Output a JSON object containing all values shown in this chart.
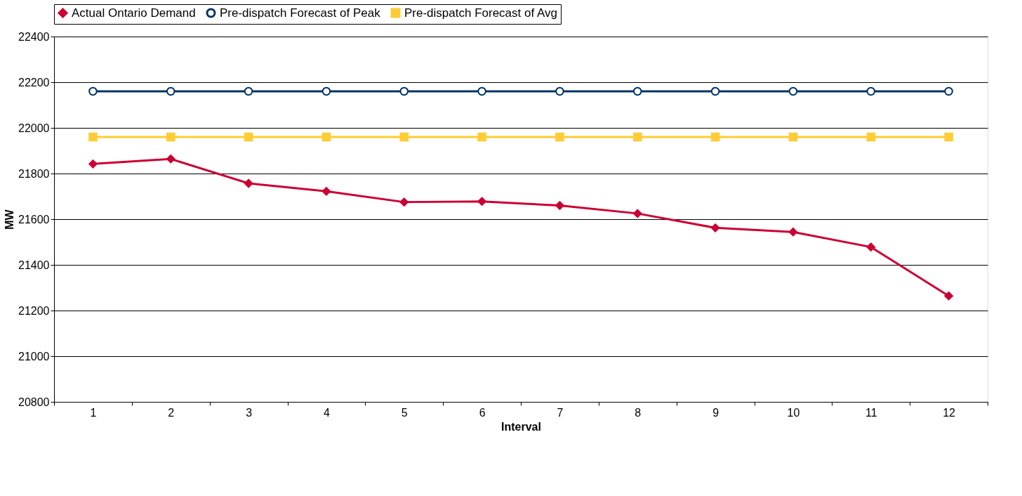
{
  "chart_data": {
    "type": "line",
    "xlabel": "Interval",
    "ylabel": "MW",
    "categories": [
      "1",
      "2",
      "3",
      "4",
      "5",
      "6",
      "7",
      "8",
      "9",
      "10",
      "11",
      "12"
    ],
    "series": [
      {
        "name": "Actual Ontario Demand",
        "color": "#cc0033",
        "marker": "diamond",
        "values": [
          21842,
          21864,
          21757,
          21722,
          21675,
          21678,
          21660,
          21625,
          21562,
          21544,
          21478,
          21264
        ]
      },
      {
        "name": "Pre-dispatch Forecast of Peak",
        "color": "#003366",
        "marker": "circle",
        "values": [
          22160,
          22160,
          22160,
          22160,
          22160,
          22160,
          22160,
          22160,
          22160,
          22160,
          22160,
          22160
        ]
      },
      {
        "name": "Pre-dispatch Forecast of Avg",
        "color": "#ffcc33",
        "marker": "square",
        "values": [
          21960,
          21960,
          21960,
          21960,
          21960,
          21960,
          21960,
          21960,
          21960,
          21960,
          21960,
          21960
        ]
      }
    ],
    "ylim": [
      20800,
      22400
    ],
    "yticks": [
      20800,
      21000,
      21200,
      21400,
      21600,
      21800,
      22000,
      22200,
      22400
    ],
    "grid": "y",
    "legend": "top",
    "line_style": "solid"
  }
}
